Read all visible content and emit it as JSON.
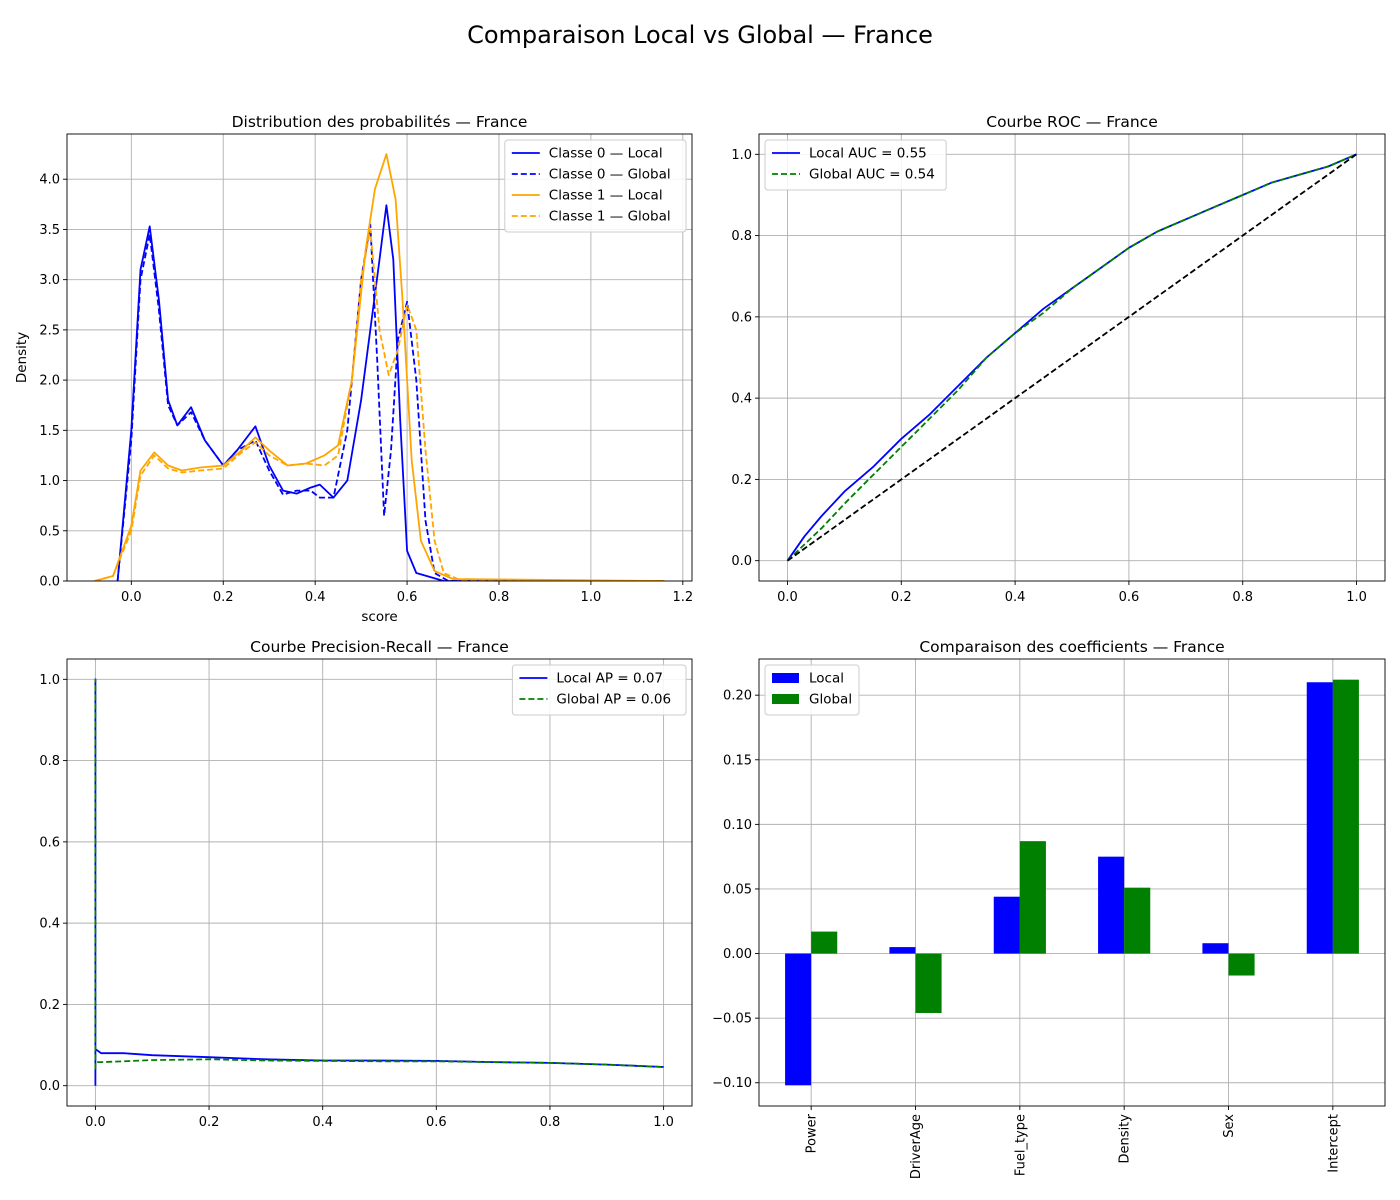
{
  "suptitle": "Comparaison Local vs Global — France",
  "colors": {
    "local": "#0000ff",
    "global_roc": "#008000",
    "class1": "#ffa500",
    "grid": "#b0b0b0",
    "diagonal": "#000000"
  },
  "chart_data": [
    {
      "id": "kde",
      "type": "line",
      "title": "Distribution des probabilités — France",
      "xlabel": "score",
      "ylabel": "Density",
      "xlim": [
        -0.14,
        1.22
      ],
      "ylim": [
        0,
        4.45
      ],
      "xticks": [
        0.0,
        0.2,
        0.4,
        0.6,
        0.8,
        1.0,
        1.2
      ],
      "xtick_labels": [
        "0.0",
        "0.2",
        "0.4",
        "0.6",
        "0.8",
        "1.0",
        "1.2"
      ],
      "yticks": [
        0.0,
        0.5,
        1.0,
        1.5,
        2.0,
        2.5,
        3.0,
        3.5,
        4.0
      ],
      "ytick_labels": [
        "0.0",
        "0.5",
        "1.0",
        "1.5",
        "2.0",
        "2.5",
        "3.0",
        "3.5",
        "4.0"
      ],
      "grid": true,
      "legend_position": "top-right",
      "series": [
        {
          "name": "Classe 0 — Local",
          "color": "#0000ff",
          "style": "solid",
          "x": [
            -0.03,
            0.0,
            0.02,
            0.04,
            0.06,
            0.08,
            0.1,
            0.13,
            0.16,
            0.2,
            0.23,
            0.27,
            0.3,
            0.33,
            0.36,
            0.39,
            0.41,
            0.44,
            0.47,
            0.5,
            0.52,
            0.54,
            0.555,
            0.57,
            0.585,
            0.6,
            0.62,
            0.65,
            0.68,
            1.16
          ],
          "y": [
            0.0,
            1.5,
            3.1,
            3.53,
            2.8,
            1.8,
            1.55,
            1.73,
            1.4,
            1.15,
            1.3,
            1.54,
            1.15,
            0.9,
            0.87,
            0.93,
            0.96,
            0.83,
            1.0,
            1.8,
            2.5,
            3.2,
            3.74,
            3.2,
            1.6,
            0.3,
            0.08,
            0.04,
            0.0,
            0.0
          ]
        },
        {
          "name": "Classe 0 — Global",
          "color": "#0000ff",
          "style": "dashed",
          "x": [
            -0.03,
            0.0,
            0.02,
            0.04,
            0.06,
            0.08,
            0.1,
            0.13,
            0.16,
            0.2,
            0.23,
            0.27,
            0.3,
            0.33,
            0.36,
            0.39,
            0.41,
            0.44,
            0.47,
            0.5,
            0.52,
            0.535,
            0.55,
            0.565,
            0.58,
            0.6,
            0.62,
            0.64,
            0.66,
            0.69,
            1.16
          ],
          "y": [
            0.0,
            1.4,
            3.0,
            3.45,
            2.7,
            1.75,
            1.55,
            1.68,
            1.4,
            1.15,
            1.3,
            1.4,
            1.1,
            0.86,
            0.9,
            0.9,
            0.83,
            0.83,
            1.5,
            3.0,
            3.55,
            2.2,
            0.65,
            1.3,
            2.4,
            2.78,
            2.0,
            0.6,
            0.08,
            0.0,
            0.0
          ]
        },
        {
          "name": "Classe 1 — Local",
          "color": "#ffa500",
          "style": "solid",
          "x": [
            -0.08,
            -0.04,
            0.0,
            0.02,
            0.05,
            0.08,
            0.11,
            0.15,
            0.2,
            0.24,
            0.27,
            0.3,
            0.34,
            0.38,
            0.42,
            0.45,
            0.48,
            0.51,
            0.53,
            0.555,
            0.575,
            0.59,
            0.61,
            0.63,
            0.66,
            0.7,
            1.16
          ],
          "y": [
            0.0,
            0.05,
            0.55,
            1.1,
            1.28,
            1.15,
            1.1,
            1.13,
            1.15,
            1.3,
            1.43,
            1.3,
            1.15,
            1.17,
            1.25,
            1.35,
            2.0,
            3.3,
            3.9,
            4.25,
            3.8,
            2.8,
            1.2,
            0.4,
            0.1,
            0.02,
            0.0
          ]
        },
        {
          "name": "Classe 1 — Global",
          "color": "#ffa500",
          "style": "dashed",
          "x": [
            -0.08,
            -0.04,
            0.0,
            0.02,
            0.05,
            0.08,
            0.11,
            0.15,
            0.2,
            0.24,
            0.27,
            0.3,
            0.34,
            0.38,
            0.42,
            0.45,
            0.48,
            0.5,
            0.52,
            0.54,
            0.56,
            0.58,
            0.6,
            0.62,
            0.64,
            0.66,
            0.68,
            0.72,
            1.16
          ],
          "y": [
            0.0,
            0.05,
            0.5,
            1.05,
            1.25,
            1.12,
            1.08,
            1.1,
            1.12,
            1.28,
            1.38,
            1.25,
            1.15,
            1.17,
            1.15,
            1.25,
            2.0,
            3.0,
            3.5,
            2.5,
            2.05,
            2.3,
            2.75,
            2.5,
            1.3,
            0.4,
            0.08,
            0.0,
            0.0
          ]
        }
      ]
    },
    {
      "id": "roc",
      "type": "line",
      "title": "Courbe ROC — France",
      "xlabel": "",
      "ylabel": "",
      "xlim": [
        -0.05,
        1.05
      ],
      "ylim": [
        -0.05,
        1.05
      ],
      "xticks": [
        0.0,
        0.2,
        0.4,
        0.6,
        0.8,
        1.0
      ],
      "xtick_labels": [
        "0.0",
        "0.2",
        "0.4",
        "0.6",
        "0.8",
        "1.0"
      ],
      "yticks": [
        0.0,
        0.2,
        0.4,
        0.6,
        0.8,
        1.0
      ],
      "ytick_labels": [
        "0.0",
        "0.2",
        "0.4",
        "0.6",
        "0.8",
        "1.0"
      ],
      "grid": true,
      "legend_position": "top-left",
      "series": [
        {
          "name": "Local AUC = 0.55",
          "color": "#0000ff",
          "style": "solid",
          "x": [
            0.0,
            0.03,
            0.06,
            0.1,
            0.15,
            0.2,
            0.25,
            0.3,
            0.35,
            0.4,
            0.45,
            0.5,
            0.55,
            0.6,
            0.65,
            0.7,
            0.75,
            0.8,
            0.85,
            0.9,
            0.95,
            1.0
          ],
          "y": [
            0.0,
            0.06,
            0.11,
            0.17,
            0.23,
            0.3,
            0.36,
            0.43,
            0.5,
            0.56,
            0.62,
            0.67,
            0.72,
            0.77,
            0.81,
            0.84,
            0.87,
            0.9,
            0.93,
            0.95,
            0.97,
            1.0
          ]
        },
        {
          "name": "Global AUC = 0.54",
          "color": "#008000",
          "style": "dashed",
          "x": [
            0.0,
            0.03,
            0.06,
            0.1,
            0.15,
            0.2,
            0.25,
            0.3,
            0.35,
            0.4,
            0.45,
            0.5,
            0.55,
            0.6,
            0.65,
            0.7,
            0.75,
            0.8,
            0.85,
            0.9,
            0.95,
            1.0
          ],
          "y": [
            0.0,
            0.04,
            0.08,
            0.14,
            0.21,
            0.28,
            0.35,
            0.42,
            0.5,
            0.56,
            0.61,
            0.67,
            0.72,
            0.77,
            0.81,
            0.84,
            0.87,
            0.9,
            0.93,
            0.95,
            0.97,
            1.0
          ]
        },
        {
          "name": "",
          "color": "#000000",
          "style": "dashed",
          "x": [
            0.0,
            1.0
          ],
          "y": [
            0.0,
            1.0
          ]
        }
      ]
    },
    {
      "id": "pr",
      "type": "line",
      "title": "Courbe Precision-Recall — France",
      "xlabel": "",
      "ylabel": "",
      "xlim": [
        -0.05,
        1.05
      ],
      "ylim": [
        -0.05,
        1.05
      ],
      "xticks": [
        0.0,
        0.2,
        0.4,
        0.6,
        0.8,
        1.0
      ],
      "xtick_labels": [
        "0.0",
        "0.2",
        "0.4",
        "0.6",
        "0.8",
        "1.0"
      ],
      "yticks": [
        0.0,
        0.2,
        0.4,
        0.6,
        0.8,
        1.0
      ],
      "ytick_labels": [
        "0.0",
        "0.2",
        "0.4",
        "0.6",
        "0.8",
        "1.0"
      ],
      "grid": true,
      "legend_position": "top-right",
      "series": [
        {
          "name": "Local AP = 0.07",
          "color": "#0000ff",
          "style": "solid",
          "x": [
            0.0,
            0.0,
            0.0,
            0.005,
            0.01,
            0.05,
            0.1,
            0.2,
            0.3,
            0.4,
            0.5,
            0.6,
            0.7,
            0.8,
            0.9,
            1.0
          ],
          "y": [
            0.0,
            1.0,
            0.09,
            0.085,
            0.08,
            0.08,
            0.075,
            0.07,
            0.065,
            0.062,
            0.062,
            0.061,
            0.058,
            0.056,
            0.052,
            0.046
          ]
        },
        {
          "name": "Global AP = 0.06",
          "color": "#008000",
          "style": "dashed",
          "x": [
            0.0,
            0.0,
            0.0,
            0.005,
            0.01,
            0.05,
            0.1,
            0.2,
            0.3,
            0.4,
            0.5,
            0.6,
            0.7,
            0.8,
            0.9,
            1.0
          ],
          "y": [
            0.04,
            1.0,
            0.06,
            0.058,
            0.058,
            0.06,
            0.063,
            0.065,
            0.062,
            0.061,
            0.06,
            0.06,
            0.058,
            0.056,
            0.052,
            0.046
          ]
        }
      ]
    },
    {
      "id": "coef",
      "type": "bar",
      "title": "Comparaison des coefficients — France",
      "xlabel": "",
      "ylabel": "",
      "categories": [
        "Power",
        "DriverAge",
        "Fuel_type",
        "Density",
        "Sex",
        "Intercept"
      ],
      "ylim": [
        -0.118,
        0.228
      ],
      "yticks": [
        -0.1,
        -0.05,
        0.0,
        0.05,
        0.1,
        0.15,
        0.2
      ],
      "ytick_labels": [
        "−0.10",
        "−0.05",
        "0.00",
        "0.05",
        "0.10",
        "0.15",
        "0.20"
      ],
      "grid": true,
      "legend_position": "top-left",
      "series": [
        {
          "name": "Local",
          "color": "#0000ff",
          "values": [
            -0.102,
            0.005,
            0.044,
            0.075,
            0.008,
            0.21
          ]
        },
        {
          "name": "Global",
          "color": "#008000",
          "values": [
            0.017,
            -0.046,
            0.087,
            0.051,
            -0.017,
            0.212
          ]
        }
      ]
    }
  ]
}
